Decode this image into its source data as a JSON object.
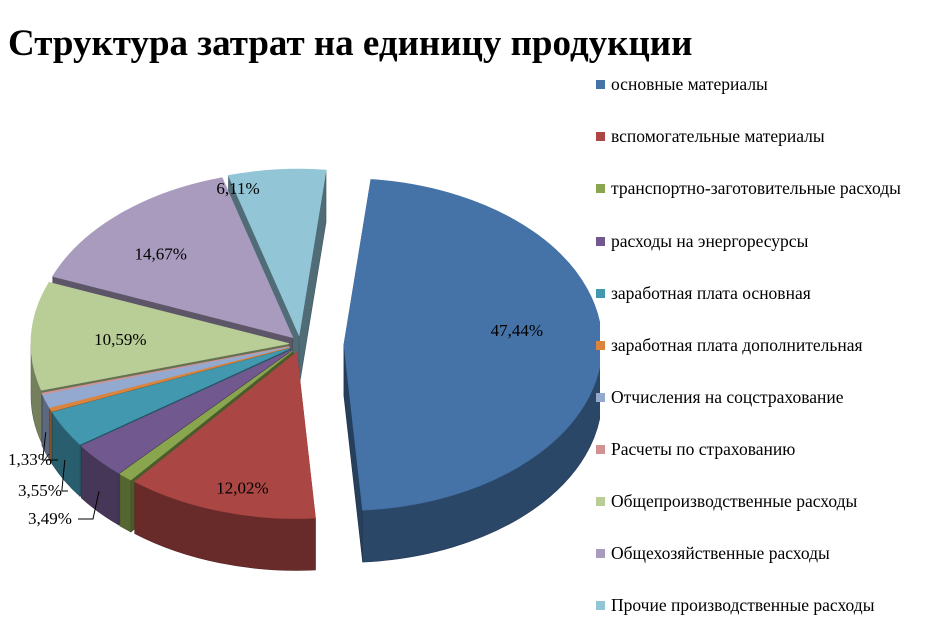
{
  "chart_data": {
    "type": "pie",
    "title": "Структура затрат на единицу продукции",
    "legend_position": "right",
    "slices": [
      {
        "label": "основные материалы",
        "value": 47.44,
        "value_label": "47,44%",
        "color": "#4572A7"
      },
      {
        "label": "вспомогательные материалы",
        "value": 12.02,
        "value_label": "12,02%",
        "color": "#AA4643"
      },
      {
        "label": "транспортно-заготовительные расходы",
        "value": 0.9,
        "value_label": "",
        "color": "#89A54E"
      },
      {
        "label": "расходы на энергоресурсы",
        "value": 3.49,
        "value_label": "3,49%",
        "color": "#71588F"
      },
      {
        "label": "заработная плата основная",
        "value": 3.55,
        "value_label": "3,55%",
        "color": "#4198AF"
      },
      {
        "label": "заработная плата дополнительная",
        "value": 0.35,
        "value_label": "",
        "color": "#DB843D"
      },
      {
        "label": "Отчисления на соцстрахование",
        "value": 1.33,
        "value_label": "1,33%",
        "color": "#93A9CF"
      },
      {
        "label": "Расчеты по страхованию",
        "value": 0.1,
        "value_label": "",
        "color": "#D19392"
      },
      {
        "label": "Общепроизводственные расходы",
        "value": 10.59,
        "value_label": "10,59%",
        "color": "#B9CD96"
      },
      {
        "label": "Общехозяйственные расходы",
        "value": 14.67,
        "value_label": "14,67%",
        "color": "#A99BBD"
      },
      {
        "label": "Прочие производственные расходы",
        "value": 6.11,
        "value_label": "6,11%",
        "color": "#92C5D6"
      }
    ]
  }
}
